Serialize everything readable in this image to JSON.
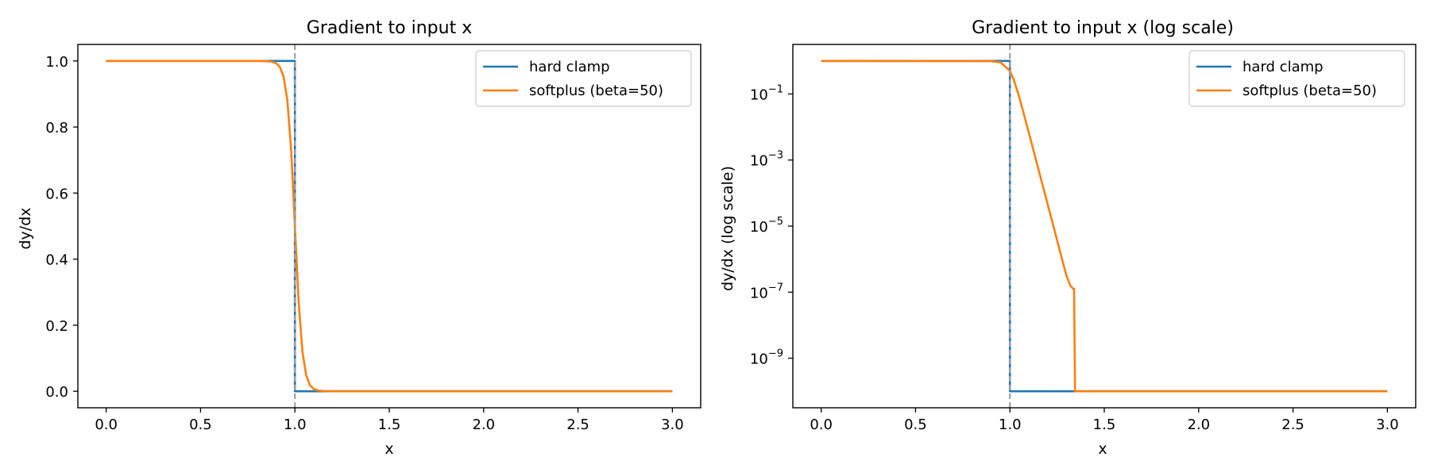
{
  "figure": {
    "colors": {
      "hard_clamp": "#1f77b4",
      "softplus": "#ff7f0e",
      "threshold_line": "#a0a0a0"
    }
  },
  "chart_data": [
    {
      "type": "line",
      "title": "Gradient to input x",
      "xlabel": "x",
      "ylabel": "dy/dx",
      "xlim": [
        -0.15,
        3.15
      ],
      "ylim": [
        -0.05,
        1.05
      ],
      "yscale": "linear",
      "xticks": [
        0.0,
        0.5,
        1.0,
        1.5,
        2.0,
        2.5,
        3.0
      ],
      "xtick_labels": [
        "0.0",
        "0.5",
        "1.0",
        "1.5",
        "2.0",
        "2.5",
        "3.0"
      ],
      "yticks": [
        0.0,
        0.2,
        0.4,
        0.6,
        0.8,
        1.0
      ],
      "ytick_labels": [
        "0.0",
        "0.2",
        "0.4",
        "0.6",
        "0.8",
        "1.0"
      ],
      "vline_x": 1.0,
      "grid": false,
      "legend_position": "top-right",
      "series": [
        {
          "name": "hard clamp",
          "color": "#1f77b4",
          "x": [
            0.0,
            1.0,
            1.0,
            3.0
          ],
          "y": [
            1.0,
            1.0,
            0.0,
            0.0
          ]
        },
        {
          "name": "softplus (beta=50)",
          "color": "#ff7f0e",
          "x": [
            0.0,
            0.8,
            0.85,
            0.88,
            0.9,
            0.92,
            0.94,
            0.96,
            0.98,
            1.0,
            1.02,
            1.04,
            1.06,
            1.08,
            1.1,
            1.12,
            1.15,
            1.2,
            3.0
          ],
          "y": [
            1.0,
            1.0,
            0.9994,
            0.9975,
            0.9933,
            0.982,
            0.9526,
            0.8808,
            0.7311,
            0.5,
            0.2689,
            0.1192,
            0.0474,
            0.018,
            0.0067,
            0.0025,
            0.0006,
            0.0,
            0.0
          ]
        }
      ]
    },
    {
      "type": "line",
      "title": "Gradient to input x (log scale)",
      "xlabel": "x",
      "ylabel": "dy/dx (log scale)",
      "xlim": [
        -0.15,
        3.15
      ],
      "ylim_log10": [
        -10.5,
        0.5
      ],
      "yscale": "log",
      "xticks": [
        0.0,
        0.5,
        1.0,
        1.5,
        2.0,
        2.5,
        3.0
      ],
      "xtick_labels": [
        "0.0",
        "0.5",
        "1.0",
        "1.5",
        "2.0",
        "2.5",
        "3.0"
      ],
      "yticks_log10": [
        -1,
        -3,
        -5,
        -7,
        -9
      ],
      "ytick_base": "10",
      "ytick_exponents": [
        "−1",
        "−3",
        "−5",
        "−7",
        "−9"
      ],
      "vline_x": 1.0,
      "grid": false,
      "legend_position": "top-right",
      "series": [
        {
          "name": "hard clamp",
          "color": "#1f77b4",
          "x": [
            0.0,
            0.99,
            1.0,
            1.0,
            3.0
          ],
          "y_log10": [
            0.0,
            0.0,
            0.0,
            -10.0,
            -10.0
          ]
        },
        {
          "name": "softplus (beta=50)",
          "color": "#ff7f0e",
          "x": [
            0.0,
            0.9,
            0.95,
            1.0,
            1.02,
            1.05,
            1.1,
            1.2,
            1.3,
            1.32,
            1.335,
            1.34,
            1.345,
            3.0
          ],
          "y_log10": [
            0.0,
            -0.005,
            -0.04,
            -0.3,
            -0.56,
            -1.1,
            -2.17,
            -4.34,
            -6.51,
            -6.8,
            -6.9,
            -6.9,
            -10.0,
            -10.0
          ]
        }
      ]
    }
  ]
}
